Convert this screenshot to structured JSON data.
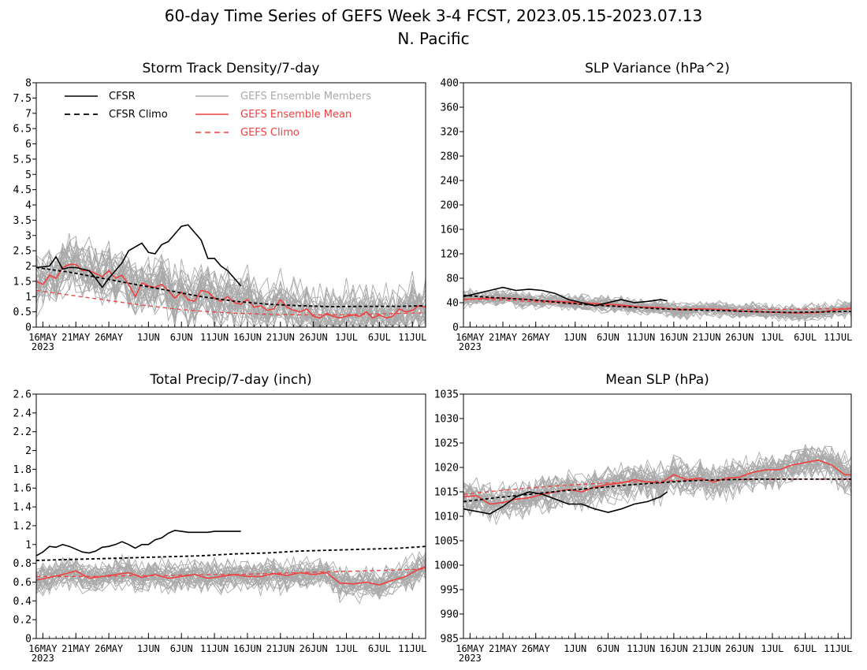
{
  "figure": {
    "title_line1": "60-day Time Series of GEFS Week 3-4 FCST, 2023.05.15-2023.07.13",
    "title_line2": "N. Pacific"
  },
  "legend": {
    "cfsr": "CFSR",
    "cfsr_climo": "CFSR Climo",
    "gefs_members": "GEFS Ensemble Members",
    "gefs_mean": "GEFS Ensemble Mean",
    "gefs_climo": "GEFS Climo"
  },
  "colors": {
    "cfsr": "#000000",
    "members": "#a9a9a9",
    "ens_mean": "#f04040",
    "gefs_climo": "#f04040"
  },
  "x_axis": {
    "ticks": [
      {
        "day": 1,
        "label": "16MAY"
      },
      {
        "day": 6,
        "label": "21MAY"
      },
      {
        "day": 11,
        "label": "26MAY"
      },
      {
        "day": 17,
        "label": "1JUN"
      },
      {
        "day": 22,
        "label": "6JUN"
      },
      {
        "day": 27,
        "label": "11JUN"
      },
      {
        "day": 32,
        "label": "16JUN"
      },
      {
        "day": 37,
        "label": "21JUN"
      },
      {
        "day": 42,
        "label": "26JUN"
      },
      {
        "day": 47,
        "label": "1JUL"
      },
      {
        "day": 52,
        "label": "6JUL"
      },
      {
        "day": 57,
        "label": "11JUL"
      }
    ],
    "year_label": "2023",
    "range": [
      0,
      59
    ]
  },
  "chart_data": [
    {
      "type": "line",
      "title": "Storm Track Density/7-day",
      "ylim": [
        0,
        8
      ],
      "yticks": [
        0,
        0.5,
        1,
        1.5,
        2,
        2.5,
        3,
        3.5,
        4,
        4.5,
        5,
        5.5,
        6,
        6.5,
        7,
        7.5,
        8
      ],
      "ytick_labels": [
        "0",
        "0.5",
        "1",
        "1.5",
        "2",
        "2.5",
        "3",
        "3.5",
        "4",
        "4.5",
        "5",
        "5.5",
        "6",
        "6.5",
        "7",
        "7.5",
        "8"
      ],
      "members": {
        "count": 31,
        "spread": 0.55,
        "seed": 11
      },
      "cfsr": {
        "x": [
          0,
          2,
          3,
          4,
          5,
          6,
          8,
          9,
          10,
          11,
          13,
          14,
          16,
          17,
          18,
          19,
          20,
          22,
          23,
          24,
          25,
          26,
          27,
          28,
          29,
          30,
          31
        ],
        "y": [
          1.95,
          2.0,
          2.3,
          1.9,
          1.95,
          1.95,
          1.85,
          1.6,
          1.3,
          1.6,
          2.1,
          2.5,
          2.75,
          2.45,
          2.4,
          2.7,
          2.8,
          3.3,
          3.35,
          3.1,
          2.85,
          2.25,
          2.25,
          2.0,
          1.85,
          1.6,
          1.35
        ]
      },
      "cfsr_climo": {
        "x": [
          0,
          5,
          10,
          15,
          20,
          25,
          30,
          35,
          40,
          45,
          50,
          55,
          59
        ],
        "y": [
          1.95,
          1.8,
          1.6,
          1.4,
          1.2,
          1.0,
          0.85,
          0.75,
          0.7,
          0.67,
          0.68,
          0.68,
          0.7
        ]
      },
      "ens_mean": {
        "x": [
          0,
          1,
          2,
          3,
          4,
          5,
          6,
          7,
          8,
          9,
          10,
          11,
          12,
          13,
          14,
          15,
          16,
          17,
          18,
          19,
          20,
          21,
          22,
          23,
          24,
          25,
          26,
          27,
          28,
          29,
          30,
          31,
          32,
          33,
          34,
          35,
          36,
          37,
          38,
          39,
          40,
          41,
          42,
          43,
          44,
          45,
          46,
          47,
          48,
          49,
          50,
          51,
          52,
          53,
          54,
          55,
          56,
          57,
          58,
          59
        ],
        "y": [
          1.5,
          1.4,
          1.7,
          1.6,
          1.95,
          2.05,
          2.05,
          1.85,
          1.85,
          1.75,
          1.65,
          1.85,
          1.6,
          1.7,
          1.4,
          1.0,
          1.45,
          1.35,
          1.3,
          1.4,
          1.2,
          0.95,
          1.15,
          0.9,
          0.85,
          1.2,
          1.15,
          0.95,
          0.85,
          1.0,
          0.8,
          0.75,
          0.9,
          0.65,
          0.7,
          0.55,
          0.6,
          0.9,
          0.65,
          0.55,
          0.5,
          0.6,
          0.35,
          0.3,
          0.45,
          0.35,
          0.3,
          0.35,
          0.4,
          0.35,
          0.5,
          0.3,
          0.4,
          0.3,
          0.35,
          0.6,
          0.5,
          0.55,
          0.7,
          0.65
        ]
      },
      "gefs_climo": {
        "x": [
          0,
          5,
          10,
          15,
          20,
          25,
          30,
          35,
          40,
          45,
          50,
          55,
          59
        ],
        "y": [
          1.2,
          1.05,
          0.9,
          0.75,
          0.62,
          0.52,
          0.46,
          0.42,
          0.4,
          0.4,
          0.42,
          0.45,
          0.47
        ]
      }
    },
    {
      "type": "line",
      "title": "SLP Variance (hPa^2)",
      "ylim": [
        0,
        400
      ],
      "yticks": [
        0,
        40,
        80,
        120,
        160,
        200,
        240,
        280,
        320,
        360,
        400
      ],
      "ytick_labels": [
        "0",
        "40",
        "80",
        "120",
        "160",
        "200",
        "240",
        "280",
        "320",
        "360",
        "400"
      ],
      "members": {
        "count": 31,
        "spread": 8,
        "seed": 23
      },
      "cfsr": {
        "x": [
          0,
          2,
          4,
          6,
          8,
          10,
          12,
          14,
          16,
          18,
          20,
          22,
          24,
          26,
          28,
          30,
          31
        ],
        "y": [
          50,
          55,
          60,
          65,
          60,
          62,
          60,
          55,
          45,
          40,
          35,
          40,
          45,
          40,
          42,
          45,
          43
        ]
      },
      "cfsr_climo": {
        "x": [
          0,
          5,
          10,
          15,
          20,
          25,
          30,
          35,
          40,
          45,
          50,
          55,
          59
        ],
        "y": [
          52,
          48,
          45,
          40,
          36,
          33,
          30,
          28,
          27,
          25,
          24,
          25,
          26
        ]
      },
      "ens_mean": {
        "x": [
          0,
          3,
          6,
          9,
          12,
          15,
          18,
          21,
          24,
          27,
          30,
          33,
          36,
          39,
          42,
          45,
          48,
          51,
          54,
          57,
          59
        ],
        "y": [
          45,
          47,
          48,
          46,
          43,
          42,
          40,
          38,
          36,
          33,
          32,
          28,
          30,
          29,
          26,
          25,
          24,
          23,
          24,
          29,
          30
        ]
      },
      "gefs_climo": {
        "x": [
          0,
          5,
          10,
          15,
          20,
          25,
          30,
          35,
          40,
          45,
          50,
          55,
          59
        ],
        "y": [
          46,
          45,
          42,
          39,
          36,
          33,
          31,
          30,
          29,
          29,
          29,
          30,
          31
        ]
      }
    },
    {
      "type": "line",
      "title": "Total Precip/7-day (inch)",
      "ylim": [
        0,
        2.6
      ],
      "yticks": [
        0,
        0.2,
        0.4,
        0.6,
        0.8,
        1,
        1.2,
        1.4,
        1.6,
        1.8,
        2,
        2.2,
        2.4,
        2.6
      ],
      "ytick_labels": [
        "0",
        "0.2",
        "0.4",
        "0.6",
        "0.8",
        "1",
        "1.2",
        "1.4",
        "1.6",
        "1.8",
        "2",
        "2.2",
        "2.4",
        "2.6"
      ],
      "members": {
        "count": 31,
        "spread": 0.1,
        "seed": 37
      },
      "cfsr": {
        "x": [
          0,
          1,
          2,
          3,
          4,
          5,
          6,
          7,
          8,
          9,
          10,
          11,
          12,
          13,
          14,
          15,
          16,
          17,
          18,
          19,
          20,
          21,
          22,
          23,
          24,
          25,
          26,
          27,
          28,
          29,
          30,
          31
        ],
        "y": [
          0.88,
          0.92,
          0.98,
          0.97,
          1.0,
          0.98,
          0.95,
          0.92,
          0.91,
          0.93,
          0.97,
          0.98,
          1.0,
          1.03,
          1.0,
          0.96,
          1.0,
          1.0,
          1.05,
          1.07,
          1.12,
          1.15,
          1.14,
          1.13,
          1.13,
          1.13,
          1.13,
          1.14,
          1.14,
          1.14,
          1.14,
          1.14
        ]
      },
      "cfsr_climo": {
        "x": [
          0,
          5,
          10,
          15,
          20,
          25,
          30,
          35,
          40,
          45,
          50,
          55,
          59
        ],
        "y": [
          0.83,
          0.84,
          0.85,
          0.86,
          0.87,
          0.88,
          0.9,
          0.91,
          0.93,
          0.94,
          0.95,
          0.96,
          0.98
        ]
      },
      "ens_mean": {
        "x": [
          0,
          2,
          4,
          6,
          8,
          10,
          12,
          14,
          16,
          18,
          20,
          22,
          24,
          26,
          28,
          30,
          32,
          34,
          36,
          38,
          40,
          42,
          44,
          46,
          48,
          50,
          52,
          54,
          56,
          58,
          59
        ],
        "y": [
          0.62,
          0.65,
          0.68,
          0.72,
          0.64,
          0.66,
          0.68,
          0.7,
          0.65,
          0.68,
          0.64,
          0.66,
          0.68,
          0.64,
          0.66,
          0.68,
          0.66,
          0.66,
          0.69,
          0.67,
          0.7,
          0.68,
          0.7,
          0.59,
          0.58,
          0.6,
          0.57,
          0.62,
          0.66,
          0.74,
          0.76
        ]
      },
      "gefs_climo": {
        "x": [
          0,
          5,
          10,
          15,
          20,
          25,
          30,
          35,
          40,
          45,
          50,
          55,
          59
        ],
        "y": [
          0.66,
          0.66,
          0.66,
          0.67,
          0.67,
          0.68,
          0.68,
          0.69,
          0.7,
          0.71,
          0.72,
          0.73,
          0.74
        ]
      }
    },
    {
      "type": "line",
      "title": "Mean SLP (hPa)",
      "ylim": [
        985,
        1035
      ],
      "yticks": [
        985,
        990,
        995,
        1000,
        1005,
        1010,
        1015,
        1020,
        1025,
        1030,
        1035
      ],
      "ytick_labels": [
        "985",
        "990",
        "995",
        "1000",
        "1005",
        "1010",
        "1015",
        "1020",
        "1025",
        "1030",
        "1035"
      ],
      "members": {
        "count": 31,
        "spread": 2.2,
        "seed": 53
      },
      "cfsr": {
        "x": [
          0,
          2,
          4,
          6,
          8,
          10,
          12,
          14,
          16,
          18,
          20,
          22,
          24,
          26,
          28,
          30,
          31
        ],
        "y": [
          1011.5,
          1011.0,
          1010.5,
          1012.0,
          1014.0,
          1015.0,
          1014.5,
          1013.5,
          1012.5,
          1012.5,
          1011.5,
          1010.8,
          1011.5,
          1012.5,
          1013.0,
          1014.0,
          1015.0
        ]
      },
      "cfsr_climo": {
        "x": [
          0,
          5,
          10,
          15,
          20,
          25,
          30,
          35,
          40,
          45,
          50,
          55,
          59
        ],
        "y": [
          1013.0,
          1013.8,
          1014.5,
          1015.2,
          1015.8,
          1016.4,
          1016.9,
          1017.3,
          1017.5,
          1017.6,
          1017.6,
          1017.6,
          1017.6
        ]
      },
      "ens_mean": {
        "x": [
          0,
          2,
          4,
          6,
          8,
          10,
          12,
          14,
          16,
          18,
          20,
          22,
          24,
          26,
          28,
          30,
          32,
          34,
          36,
          38,
          40,
          42,
          44,
          46,
          48,
          50,
          52,
          54,
          56,
          58,
          59
        ],
        "y": [
          1014.0,
          1014.2,
          1012.5,
          1012.8,
          1013.5,
          1013.8,
          1014.5,
          1015.0,
          1015.5,
          1015.0,
          1016.0,
          1016.5,
          1016.8,
          1017.5,
          1017.0,
          1016.8,
          1018.5,
          1017.5,
          1017.8,
          1017.0,
          1017.8,
          1018.0,
          1019.0,
          1019.5,
          1019.5,
          1020.5,
          1021.0,
          1021.5,
          1020.5,
          1018.5,
          1018.5
        ]
      },
      "gefs_climo": {
        "x": [
          0,
          5,
          10,
          15,
          20,
          25,
          30,
          35,
          40,
          45,
          50,
          55,
          59
        ],
        "y": [
          1014.5,
          1015.2,
          1015.8,
          1016.3,
          1016.7,
          1017.0,
          1017.2,
          1017.4,
          1017.5,
          1017.6,
          1017.6,
          1017.6,
          1017.6
        ]
      }
    }
  ]
}
